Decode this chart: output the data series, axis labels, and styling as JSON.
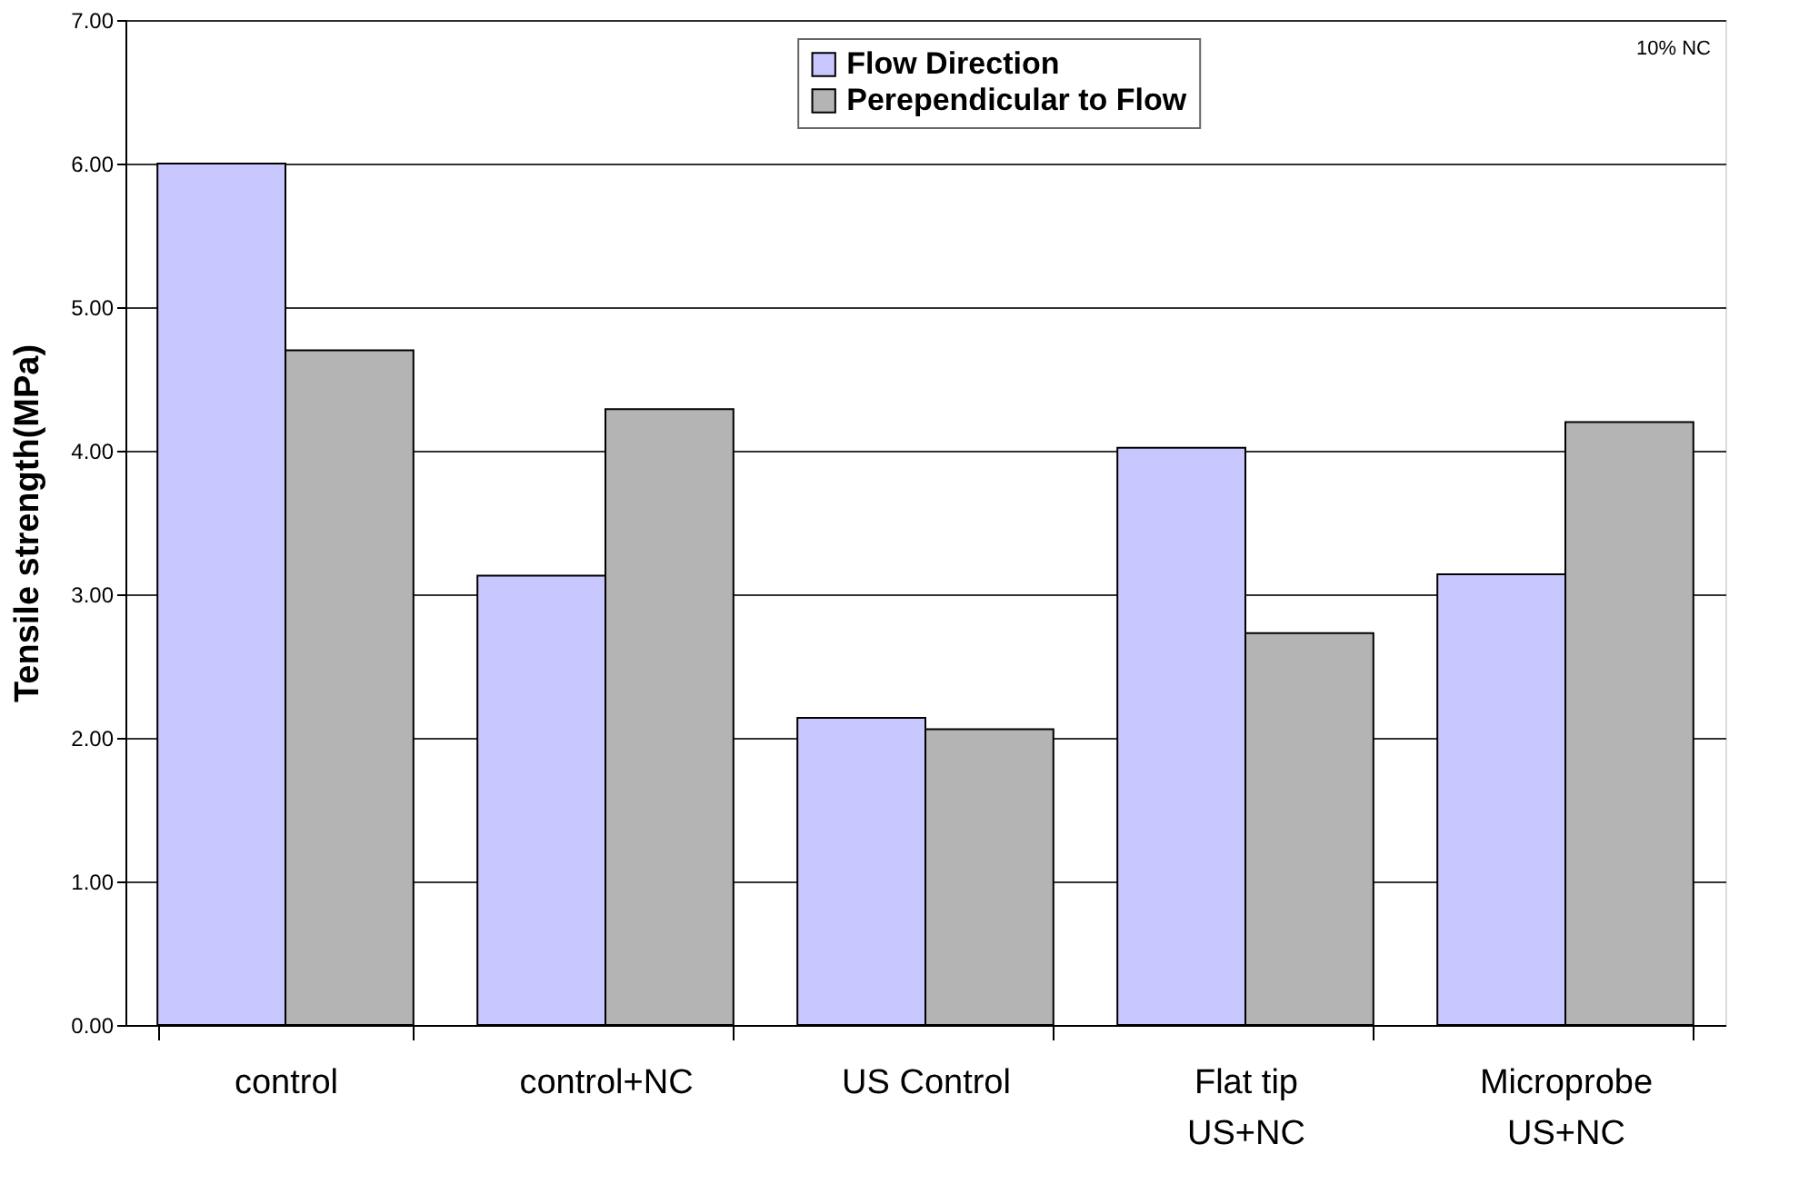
{
  "chart_data": {
    "type": "bar",
    "ylabel": "Tensile strength(MPa)",
    "categories": [
      "control",
      "control+NC",
      "US Control",
      "Flat tip\nUS+NC",
      "Microprobe\nUS+NC"
    ],
    "series": [
      {
        "name": "Flow Direction",
        "color": "#c8c8ff",
        "values": [
          6.0,
          3.13,
          2.14,
          4.02,
          3.14
        ]
      },
      {
        "name": "Perependicular to Flow",
        "color": "#b4b4b4",
        "values": [
          4.7,
          4.29,
          2.06,
          2.73,
          4.2
        ]
      }
    ],
    "ylim": [
      0,
      7
    ],
    "yticks": [
      {
        "value": 0,
        "label": "0.00"
      },
      {
        "value": 1,
        "label": "1.00"
      },
      {
        "value": 2,
        "label": "2.00"
      },
      {
        "value": 3,
        "label": "3.00"
      },
      {
        "value": 4,
        "label": "4.00"
      },
      {
        "value": 5,
        "label": "5.00"
      },
      {
        "value": 6,
        "label": "6.00"
      },
      {
        "value": 7,
        "label": "7.00"
      }
    ],
    "grid": "y",
    "legend": "top right",
    "annotations": [
      "10% NC"
    ]
  }
}
